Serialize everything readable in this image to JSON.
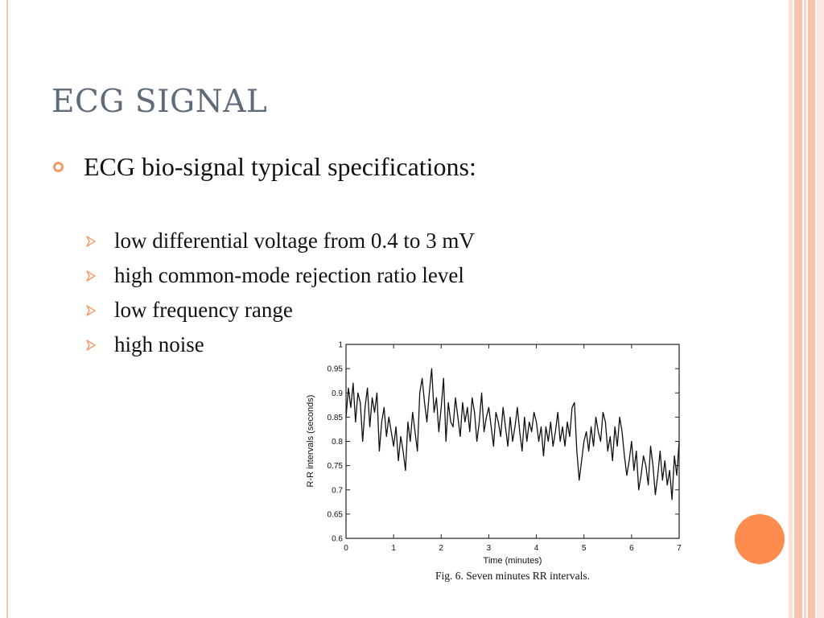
{
  "slide": {
    "title": "ECG SIGNAL",
    "bullet": "ECG bio-signal typical specifications:",
    "sub_items": [
      "low differential voltage from 0.4 to 3 mV",
      "high common-mode rejection ratio level",
      "low frequency range",
      "high noise"
    ],
    "colors": {
      "title": "#5f6b78",
      "accent_orange": "#f79a67",
      "band_peach": "#f8c3ad",
      "circle_orange": "#ff8c4f"
    }
  },
  "figure": {
    "caption": "Fig. 6.  Seven minutes RR intervals."
  },
  "chart_data": {
    "type": "line",
    "title": "",
    "xlabel": "Time (minutes)",
    "ylabel": "R-R intervals (seconds)",
    "xlim": [
      0,
      7
    ],
    "ylim": [
      0.6,
      1.0
    ],
    "xticks": [
      0,
      1,
      2,
      3,
      4,
      5,
      6,
      7
    ],
    "xtick_labels": [
      "0",
      "1",
      "2",
      "3",
      "4",
      "5",
      "6",
      "7"
    ],
    "yticks": [
      0.6,
      0.65,
      0.7,
      0.75,
      0.8,
      0.85,
      0.9,
      0.95,
      1.0
    ],
    "ytick_labels": [
      "0.6",
      "0.65",
      "0.7",
      "0.75",
      "0.8",
      "0.85",
      "0.9",
      "0.95",
      "1"
    ],
    "grid": false,
    "series": [
      {
        "x": [
          0,
          0.05,
          0.1,
          0.15,
          0.2,
          0.25,
          0.3,
          0.35,
          0.4,
          0.45,
          0.5,
          0.55,
          0.6,
          0.65,
          0.7,
          0.75,
          0.8,
          0.85,
          0.9,
          0.95,
          1,
          1.05,
          1.1,
          1.15,
          1.2,
          1.25,
          1.3,
          1.35,
          1.4,
          1.45,
          1.5,
          1.55,
          1.6,
          1.65,
          1.7,
          1.75,
          1.8,
          1.85,
          1.9,
          1.95,
          2,
          2.05,
          2.1,
          2.15,
          2.2,
          2.25,
          2.3,
          2.35,
          2.4,
          2.45,
          2.5,
          2.55,
          2.6,
          2.65,
          2.7,
          2.75,
          2.8,
          2.85,
          2.9,
          2.95,
          3,
          3.05,
          3.1,
          3.15,
          3.2,
          3.25,
          3.3,
          3.35,
          3.4,
          3.45,
          3.5,
          3.55,
          3.6,
          3.65,
          3.7,
          3.75,
          3.8,
          3.85,
          3.9,
          3.95,
          4,
          4.05,
          4.1,
          4.15,
          4.2,
          4.25,
          4.3,
          4.35,
          4.4,
          4.45,
          4.5,
          4.55,
          4.6,
          4.65,
          4.7,
          4.75,
          4.8,
          4.85,
          4.9,
          4.95,
          5,
          5.05,
          5.1,
          5.15,
          5.2,
          5.25,
          5.3,
          5.35,
          5.4,
          5.45,
          5.5,
          5.55,
          5.6,
          5.65,
          5.7,
          5.75,
          5.8,
          5.85,
          5.9,
          5.95,
          6,
          6.05,
          6.1,
          6.15,
          6.2,
          6.25,
          6.3,
          6.35,
          6.4,
          6.45,
          6.5,
          6.55,
          6.6,
          6.65,
          6.7,
          6.75,
          6.8,
          6.85,
          6.9,
          6.95,
          7
        ],
        "y": [
          0.85,
          0.91,
          0.87,
          0.92,
          0.84,
          0.9,
          0.88,
          0.8,
          0.87,
          0.91,
          0.83,
          0.89,
          0.86,
          0.9,
          0.78,
          0.84,
          0.87,
          0.81,
          0.85,
          0.82,
          0.79,
          0.83,
          0.76,
          0.81,
          0.78,
          0.74,
          0.84,
          0.8,
          0.86,
          0.82,
          0.78,
          0.9,
          0.93,
          0.88,
          0.84,
          0.9,
          0.95,
          0.86,
          0.89,
          0.82,
          0.87,
          0.93,
          0.8,
          0.88,
          0.84,
          0.83,
          0.89,
          0.85,
          0.81,
          0.88,
          0.84,
          0.87,
          0.82,
          0.89,
          0.86,
          0.8,
          0.84,
          0.9,
          0.82,
          0.85,
          0.87,
          0.83,
          0.79,
          0.86,
          0.84,
          0.81,
          0.87,
          0.83,
          0.79,
          0.85,
          0.8,
          0.83,
          0.87,
          0.82,
          0.78,
          0.85,
          0.8,
          0.84,
          0.82,
          0.86,
          0.84,
          0.8,
          0.83,
          0.77,
          0.83,
          0.8,
          0.84,
          0.79,
          0.82,
          0.86,
          0.8,
          0.83,
          0.79,
          0.84,
          0.81,
          0.87,
          0.88,
          0.78,
          0.72,
          0.76,
          0.8,
          0.82,
          0.78,
          0.83,
          0.79,
          0.85,
          0.82,
          0.8,
          0.86,
          0.84,
          0.78,
          0.81,
          0.76,
          0.83,
          0.79,
          0.85,
          0.82,
          0.77,
          0.73,
          0.76,
          0.8,
          0.74,
          0.78,
          0.7,
          0.73,
          0.77,
          0.75,
          0.71,
          0.79,
          0.75,
          0.69,
          0.73,
          0.78,
          0.72,
          0.76,
          0.71,
          0.74,
          0.68,
          0.77,
          0.73,
          0.8
        ]
      }
    ]
  }
}
